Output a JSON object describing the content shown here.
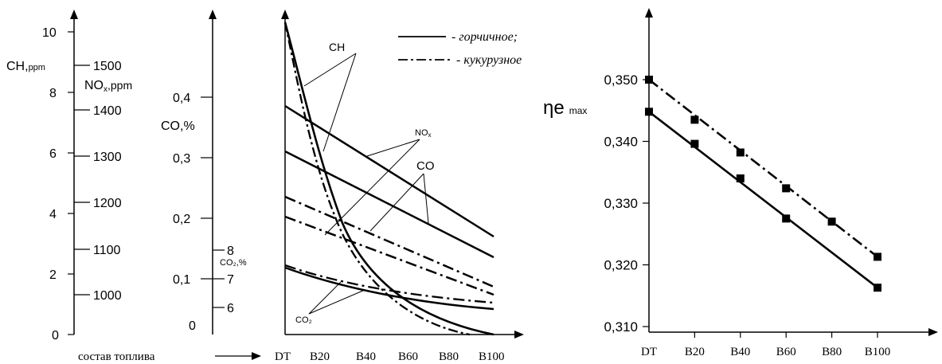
{
  "left_panel": {
    "axes": {
      "ch_label": "CH,ppm",
      "nox_label": "NOx,ppm",
      "co_label": "CO,%",
      "co2_label": "CO₂,%",
      "ch_ticks": [
        "0",
        "2",
        "4",
        "6",
        "8",
        "10"
      ],
      "ch_extra_tick": "1500",
      "nox_ticks": [
        "1000",
        "1100",
        "1200",
        "1300",
        "1400"
      ],
      "co_ticks": [
        "0",
        "0,1",
        "0,2",
        "0,3",
        "0,4"
      ],
      "co2_ticks": [
        "6",
        "7",
        "8"
      ],
      "x_ticks": [
        "DT",
        "B20",
        "B40",
        "B60",
        "B80",
        "B100"
      ],
      "x_caption": "состав топлива"
    },
    "legend": {
      "solid": "- горчичное;",
      "dashdot": "- кукурузное"
    },
    "annotations": {
      "ch": "CH",
      "nox": "NOx",
      "co": "CO",
      "co2": "CO₂"
    }
  },
  "chart_data": [
    {
      "type": "line",
      "x_axis_label": "состав топлива",
      "x": [
        "DT",
        "B20",
        "B40",
        "B60",
        "B80",
        "B100"
      ],
      "series": [
        {
          "name": "горчичное",
          "metric": "CH",
          "unit": "ppm",
          "values": [
            10.2,
            5.4,
            2.8,
            1.2,
            0.4,
            0.0
          ]
        },
        {
          "name": "кукурузное",
          "metric": "CH",
          "unit": "ppm",
          "values": [
            9.9,
            4.9,
            2.3,
            0.9,
            0.2,
            -0.05
          ]
        },
        {
          "name": "горчичное",
          "metric": "NOx",
          "unit": "ppm",
          "values": [
            1500,
            1460,
            1420,
            1380,
            1340,
            1300
          ]
        },
        {
          "name": "горчичное",
          "metric": "CO",
          "unit": "%",
          "values": [
            0.31,
            0.275,
            0.24,
            0.205,
            0.17,
            0.135
          ]
        },
        {
          "name": "кукурузное",
          "metric": "NOx",
          "unit": "ppm",
          "values": [
            1230,
            1200,
            1170,
            1140,
            1110,
            1080
          ]
        },
        {
          "name": "кукурузное",
          "metric": "CO",
          "unit": "%",
          "values": [
            0.195,
            0.175,
            0.15,
            0.125,
            0.1,
            0.08
          ]
        },
        {
          "name": "кукурузное",
          "metric": "CO2",
          "unit": "%",
          "values": [
            7.2,
            7.0,
            6.8,
            6.6,
            6.5,
            6.4
          ]
        },
        {
          "name": "горчичное",
          "metric": "CO2",
          "unit": "%",
          "values": [
            7.15,
            6.95,
            6.75,
            6.6,
            6.45,
            6.3
          ]
        }
      ],
      "y_axes": {
        "CH": {
          "label": "CH,ppm",
          "ticks": [
            0,
            2,
            4,
            6,
            8,
            10
          ]
        },
        "NOx": {
          "label": "NOx,ppm",
          "ticks": [
            1000,
            1100,
            1200,
            1300,
            1400,
            1500
          ]
        },
        "CO": {
          "label": "CO,%",
          "ticks": [
            0,
            0.1,
            0.2,
            0.3,
            0.4
          ]
        },
        "CO2": {
          "label": "CO₂,%",
          "ticks": [
            6,
            7,
            8
          ]
        }
      },
      "legend": [
        "- горчичное;",
        "- кукурузное"
      ],
      "legend_placement": "top-right"
    },
    {
      "type": "line",
      "x": [
        "DT",
        "B20",
        "B40",
        "B60",
        "B80",
        "B100"
      ],
      "ylabel": "ηe max",
      "ylim": [
        0.31,
        0.35
      ],
      "yticks": [
        "0,310",
        "0,320",
        "0,330",
        "0,340",
        "0,350"
      ],
      "series": [
        {
          "name": "кукурузное",
          "style": "dashdot",
          "values": [
            0.35,
            0.3435,
            0.3382,
            0.3324,
            0.327,
            0.3213
          ]
        },
        {
          "name": "горчичное",
          "style": "solid",
          "values": [
            0.3448,
            0.3396,
            0.334,
            0.3275,
            null,
            0.3163
          ]
        }
      ],
      "grid": false
    }
  ]
}
